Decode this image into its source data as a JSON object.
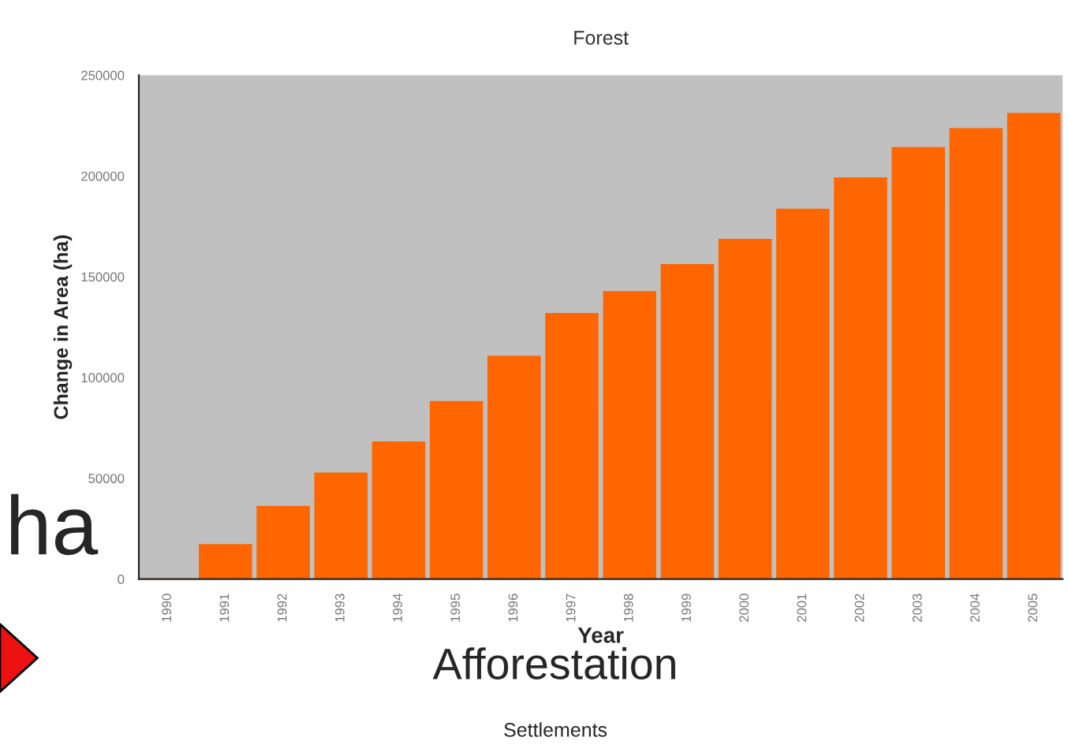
{
  "chart_data": {
    "type": "bar",
    "title": "Forest",
    "xlabel": "Year",
    "ylabel": "Change in Area (ha)",
    "categories": [
      "1990",
      "1991",
      "1992",
      "1993",
      "1994",
      "1995",
      "1996",
      "1997",
      "1998",
      "1999",
      "2000",
      "2001",
      "2002",
      "2003",
      "2004",
      "2005"
    ],
    "values": [
      0,
      17000,
      36000,
      52500,
      68000,
      88000,
      110500,
      131700,
      142600,
      156000,
      168500,
      183400,
      199000,
      214000,
      223400,
      231000
    ],
    "color": "#ff6600",
    "ylim": [
      0,
      250000
    ],
    "yticks": [
      0,
      50000,
      100000,
      150000,
      200000,
      250000
    ],
    "grid": false,
    "legend": false,
    "annotations": [
      "ha",
      "Afforestation",
      "Settlements"
    ]
  }
}
